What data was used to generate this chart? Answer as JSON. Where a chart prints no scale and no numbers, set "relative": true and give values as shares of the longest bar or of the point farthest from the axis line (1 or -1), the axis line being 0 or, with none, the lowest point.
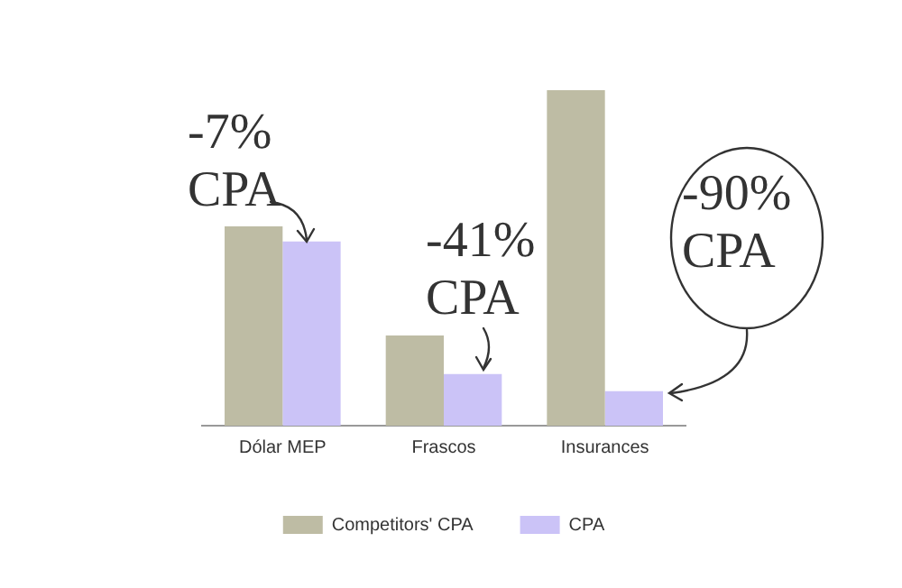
{
  "chart_data": {
    "type": "bar",
    "relative": true,
    "categories": [
      "Dólar MEP",
      "Frascos",
      "Insurances"
    ],
    "series": [
      {
        "name": "Competitors' CPA",
        "color": "#bebca4",
        "values": [
          0.594,
          0.269,
          1
        ]
      },
      {
        "name": "CPA",
        "color": "#cbc3f7",
        "values": [
          0.549,
          0.154,
          0.103
        ]
      }
    ],
    "annotations": [
      "-7% CPA",
      "-41% CPA",
      "-90% CPA"
    ],
    "legend": "bottom",
    "grid": false
  }
}
